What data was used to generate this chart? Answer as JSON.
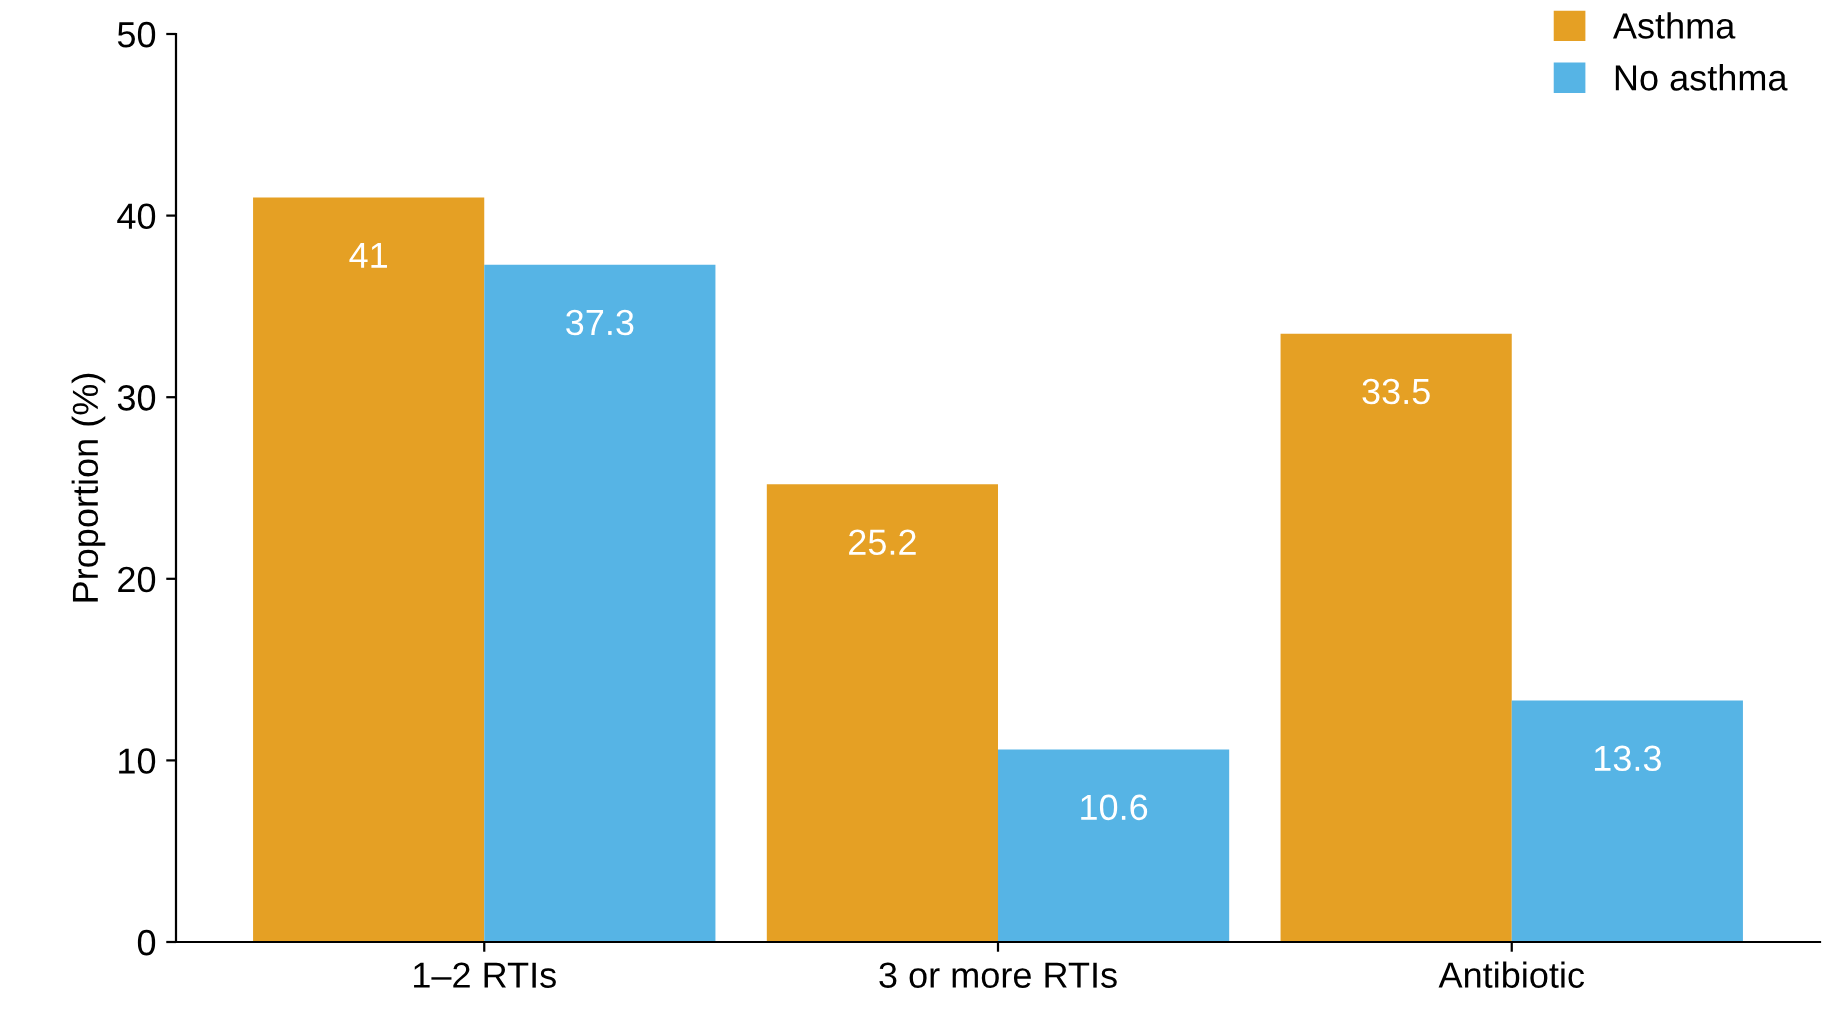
{
  "chart_data": {
    "type": "bar",
    "ylabel": "Proportion (%)",
    "categories": [
      "1–2 RTIs",
      "3 or more RTIs",
      "Antibiotic"
    ],
    "series": [
      {
        "name": "Asthma",
        "color": "#e5a024",
        "values": [
          41,
          25.2,
          33.5
        ]
      },
      {
        "name": "No asthma",
        "color": "#56b4e5",
        "values": [
          37.3,
          10.6,
          13.3
        ]
      }
    ],
    "ylim": [
      0,
      50
    ],
    "yticks": [
      0,
      10,
      20,
      30,
      40,
      50
    ],
    "grid": false,
    "legend": "top right",
    "data_labels": true
  }
}
